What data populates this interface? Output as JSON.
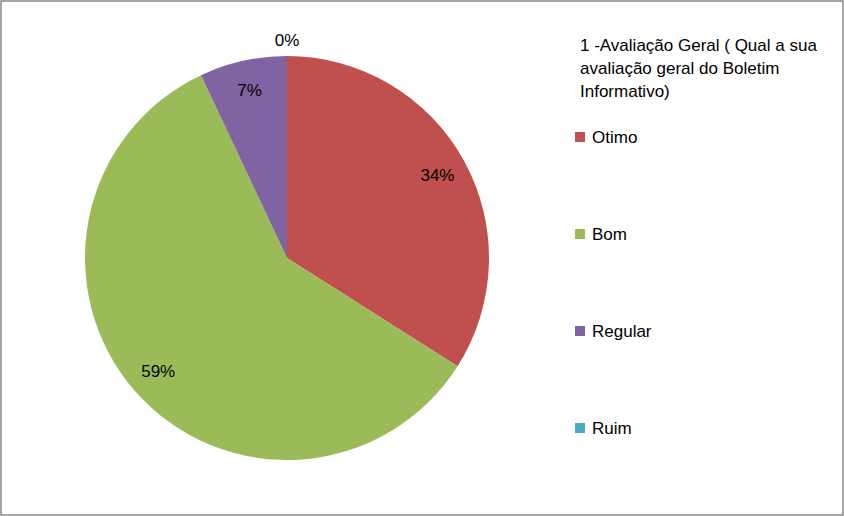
{
  "chart_data": {
    "type": "pie",
    "title": "1 -Avaliação Geral ( Qual a sua avaliação geral do Boletim Informativo)",
    "categories": [
      "Otimo",
      "Bom",
      "Regular",
      "Ruim"
    ],
    "values": [
      34,
      59,
      7,
      0
    ],
    "value_labels": [
      "34%",
      "59%",
      "7%",
      "0%"
    ],
    "colors": [
      "#c0504d",
      "#9bbb59",
      "#8064a2",
      "#4bacc6"
    ],
    "data_labels": true,
    "legend": "right"
  }
}
